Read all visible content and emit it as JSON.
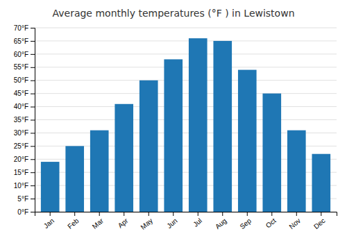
{
  "chart_data": {
    "type": "bar",
    "title": "Average monthly temperatures (°F ) in Lewistown",
    "categories": [
      "Jan",
      "Feb",
      "Mar",
      "Apr",
      "May",
      "Jun",
      "Jul",
      "Aug",
      "Sep",
      "Oct",
      "Nov",
      "Dec"
    ],
    "values": [
      19,
      25,
      31,
      41,
      50,
      58,
      66,
      65,
      54,
      45,
      31,
      22
    ],
    "ylim": [
      0,
      70
    ],
    "yticks": [
      {
        "value": 0,
        "label": "0°F"
      },
      {
        "value": 5,
        "label": "5°F"
      },
      {
        "value": 10,
        "label": "10°F"
      },
      {
        "value": 15,
        "label": "15°F"
      },
      {
        "value": 20,
        "label": "20°F"
      },
      {
        "value": 25,
        "label": "25°F"
      },
      {
        "value": 30,
        "label": "30°F"
      },
      {
        "value": 35,
        "label": "35°F"
      },
      {
        "value": 40,
        "label": "40°F"
      },
      {
        "value": 45,
        "label": "45°F"
      },
      {
        "value": 50,
        "label": "50°F"
      },
      {
        "value": 55,
        "label": "55°F"
      },
      {
        "value": 60,
        "label": "60°F"
      },
      {
        "value": 65,
        "label": "65°F"
      },
      {
        "value": 70,
        "label": "70°F"
      }
    ],
    "grid": true
  }
}
